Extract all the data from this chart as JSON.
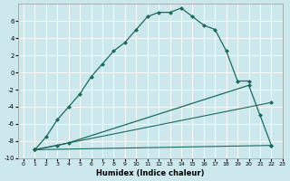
{
  "xlabel": "Humidex (Indice chaleur)",
  "bg_color": "#cde8ed",
  "grid_color": "#ffffff",
  "line_color": "#1a6b5a",
  "xlim": [
    -0.5,
    23
  ],
  "ylim": [
    -10,
    8
  ],
  "xticks": [
    0,
    1,
    2,
    3,
    4,
    5,
    6,
    7,
    8,
    9,
    10,
    11,
    12,
    13,
    14,
    15,
    16,
    17,
    18,
    19,
    20,
    21,
    22,
    23
  ],
  "yticks": [
    -10,
    -8,
    -6,
    -4,
    -2,
    0,
    2,
    4,
    6
  ],
  "curve1_x": [
    1,
    2,
    3,
    4,
    5,
    6,
    7,
    8,
    9,
    10,
    11,
    12,
    13,
    14,
    15,
    16,
    17,
    18,
    19,
    20
  ],
  "curve1_y": [
    -9,
    -7.5,
    -5.5,
    -4,
    -2.5,
    -0.5,
    1,
    2.5,
    3.5,
    5,
    6.5,
    7,
    7,
    7.5,
    6.5,
    5.5,
    5,
    2.5,
    -1,
    -1
  ],
  "curve2_x": [
    1,
    3,
    4,
    20,
    21,
    22
  ],
  "curve2_y": [
    -9,
    -8.5,
    -8.2,
    -1.5,
    -5,
    -8.5
  ],
  "curve3_x": [
    1,
    22
  ],
  "curve3_y": [
    -9,
    -3.5
  ],
  "curve4_x": [
    1,
    22
  ],
  "curve4_y": [
    -9,
    -8.5
  ]
}
